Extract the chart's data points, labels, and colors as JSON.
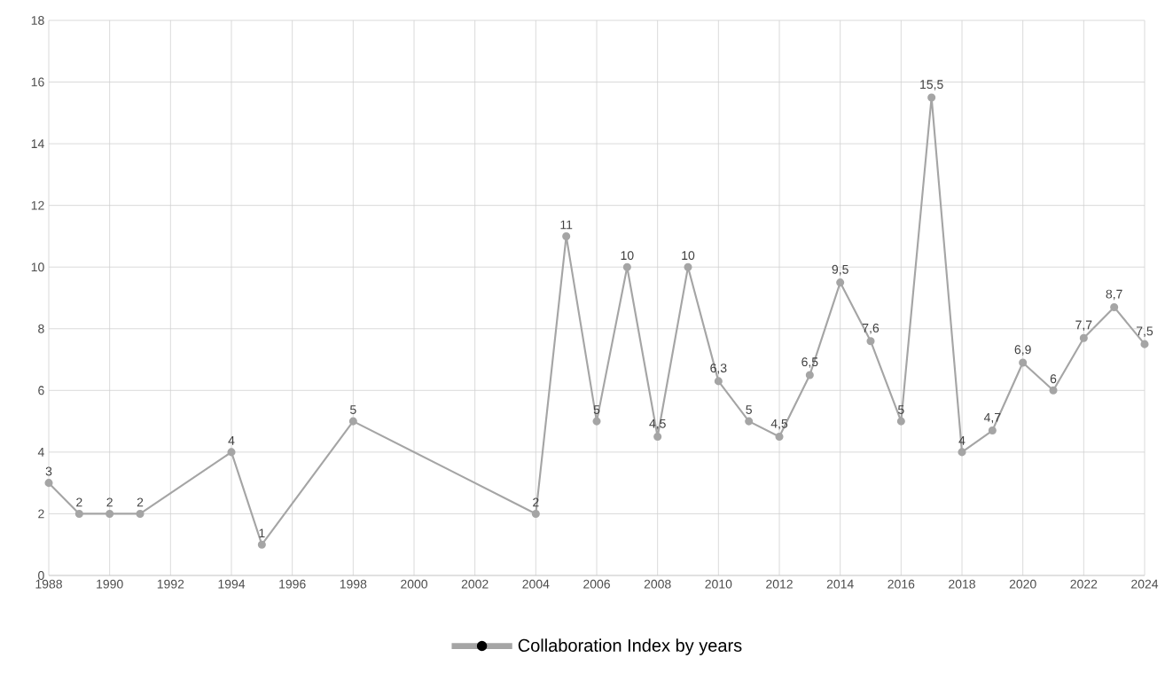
{
  "chart_data": {
    "type": "line",
    "xlim": [
      1988,
      2024
    ],
    "ylim": [
      0,
      18
    ],
    "xticks": [
      1988,
      1990,
      1992,
      1994,
      1996,
      1998,
      2000,
      2002,
      2004,
      2006,
      2008,
      2010,
      2012,
      2014,
      2016,
      2018,
      2020,
      2022,
      2024
    ],
    "yticks": [
      0,
      2,
      4,
      6,
      8,
      10,
      12,
      14,
      16,
      18
    ],
    "grid": true,
    "legend": "bottom",
    "marker": "circle",
    "line_style": "solid",
    "series": [
      {
        "name": "Collaboration Index by years",
        "color": "#a5a5a5",
        "x": [
          1988,
          1989,
          1990,
          1991,
          1994,
          1995,
          1998,
          2004,
          2005,
          2006,
          2007,
          2008,
          2009,
          2010,
          2011,
          2012,
          2013,
          2014,
          2015,
          2016,
          2017,
          2018,
          2019,
          2020,
          2021,
          2022,
          2023,
          2024
        ],
        "values": [
          3,
          2,
          2,
          2,
          4,
          1,
          5,
          2,
          11,
          5,
          10,
          4.5,
          10,
          6.3,
          5,
          4.5,
          6.5,
          9.5,
          7.6,
          5,
          15.5,
          4,
          4.7,
          6.9,
          6,
          7.7,
          8.7,
          7.5
        ],
        "value_labels": [
          "3",
          "2",
          "2",
          "2",
          "4",
          "1",
          "5",
          "2",
          "11",
          "5",
          "10",
          "4,5",
          "10",
          "6,3",
          "5",
          "4,5",
          "6,5",
          "9,5",
          "7,6",
          "5",
          "15,5",
          "4",
          "4,7",
          "6,9",
          "6",
          "7,7",
          "8,7",
          "7,5"
        ]
      }
    ]
  }
}
